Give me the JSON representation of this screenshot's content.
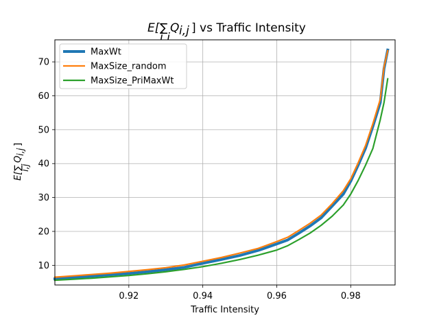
{
  "chart_data": {
    "type": "line",
    "title_parts": {
      "pre": "E[",
      "sum": "∑",
      "sub": "i,j",
      "q": "Q",
      "qsub": "i,j",
      "post": "] vs Traffic Intensity"
    },
    "xlabel": "Traffic Intensity",
    "ylabel_parts": {
      "pre": "E[",
      "sum": "∑",
      "sub": "i,j",
      "q": "Q",
      "qsub": "i,j",
      "post": "]"
    },
    "xlim": [
      0.9,
      0.992
    ],
    "ylim": [
      4.2,
      76.5
    ],
    "xticks": [
      0.92,
      0.94,
      0.96,
      0.98
    ],
    "xtick_labels": [
      "0.92",
      "0.94",
      "0.96",
      "0.98"
    ],
    "yticks": [
      10,
      20,
      30,
      40,
      50,
      60,
      70
    ],
    "ytick_labels": [
      "10",
      "20",
      "30",
      "40",
      "50",
      "60",
      "70"
    ],
    "grid": true,
    "legend_position": "top-left",
    "series": [
      {
        "name": "MaxWt",
        "color": "#1f77b4",
        "width": "thick",
        "points": [
          [
            0.9,
            6.0
          ],
          [
            0.905,
            6.4
          ],
          [
            0.91,
            6.8
          ],
          [
            0.915,
            7.2
          ],
          [
            0.92,
            7.6
          ],
          [
            0.925,
            8.1
          ],
          [
            0.93,
            8.7
          ],
          [
            0.935,
            9.4
          ],
          [
            0.94,
            10.6
          ],
          [
            0.945,
            11.7
          ],
          [
            0.95,
            12.9
          ],
          [
            0.955,
            14.4
          ],
          [
            0.96,
            16.3
          ],
          [
            0.963,
            17.5
          ],
          [
            0.966,
            19.5
          ],
          [
            0.969,
            21.6
          ],
          [
            0.972,
            24.0
          ],
          [
            0.975,
            27.5
          ],
          [
            0.978,
            31.0
          ],
          [
            0.98,
            34.8
          ],
          [
            0.982,
            39.5
          ],
          [
            0.984,
            44.5
          ],
          [
            0.986,
            51.0
          ],
          [
            0.988,
            58.0
          ],
          [
            0.989,
            68.0
          ],
          [
            0.99,
            73.5
          ]
        ]
      },
      {
        "name": "MaxSize_random",
        "color": "#ff7f0e",
        "width": "normal",
        "points": [
          [
            0.9,
            6.5
          ],
          [
            0.905,
            6.9
          ],
          [
            0.91,
            7.3
          ],
          [
            0.915,
            7.7
          ],
          [
            0.92,
            8.2
          ],
          [
            0.925,
            8.7
          ],
          [
            0.93,
            9.3
          ],
          [
            0.935,
            10.1
          ],
          [
            0.94,
            11.2
          ],
          [
            0.945,
            12.3
          ],
          [
            0.95,
            13.6
          ],
          [
            0.955,
            15.0
          ],
          [
            0.96,
            17.0
          ],
          [
            0.963,
            18.3
          ],
          [
            0.966,
            20.3
          ],
          [
            0.969,
            22.4
          ],
          [
            0.972,
            24.8
          ],
          [
            0.975,
            28.2
          ],
          [
            0.978,
            32.0
          ],
          [
            0.98,
            35.5
          ],
          [
            0.982,
            40.2
          ],
          [
            0.984,
            45.3
          ],
          [
            0.986,
            51.8
          ],
          [
            0.988,
            59.0
          ],
          [
            0.989,
            68.5
          ],
          [
            0.99,
            73.3
          ]
        ]
      },
      {
        "name": "MaxSize_PriMaxWt",
        "color": "#2ca02c",
        "width": "normal",
        "points": [
          [
            0.9,
            5.6
          ],
          [
            0.905,
            5.9
          ],
          [
            0.91,
            6.2
          ],
          [
            0.915,
            6.6
          ],
          [
            0.92,
            7.0
          ],
          [
            0.925,
            7.5
          ],
          [
            0.93,
            8.1
          ],
          [
            0.935,
            8.8
          ],
          [
            0.94,
            9.6
          ],
          [
            0.945,
            10.6
          ],
          [
            0.95,
            11.7
          ],
          [
            0.955,
            13.0
          ],
          [
            0.96,
            14.5
          ],
          [
            0.963,
            15.8
          ],
          [
            0.966,
            17.6
          ],
          [
            0.969,
            19.5
          ],
          [
            0.972,
            21.8
          ],
          [
            0.975,
            24.5
          ],
          [
            0.978,
            27.8
          ],
          [
            0.98,
            31.0
          ],
          [
            0.982,
            35.0
          ],
          [
            0.984,
            39.5
          ],
          [
            0.986,
            44.5
          ],
          [
            0.988,
            53.0
          ],
          [
            0.989,
            58.0
          ],
          [
            0.99,
            65.0
          ]
        ]
      }
    ]
  }
}
